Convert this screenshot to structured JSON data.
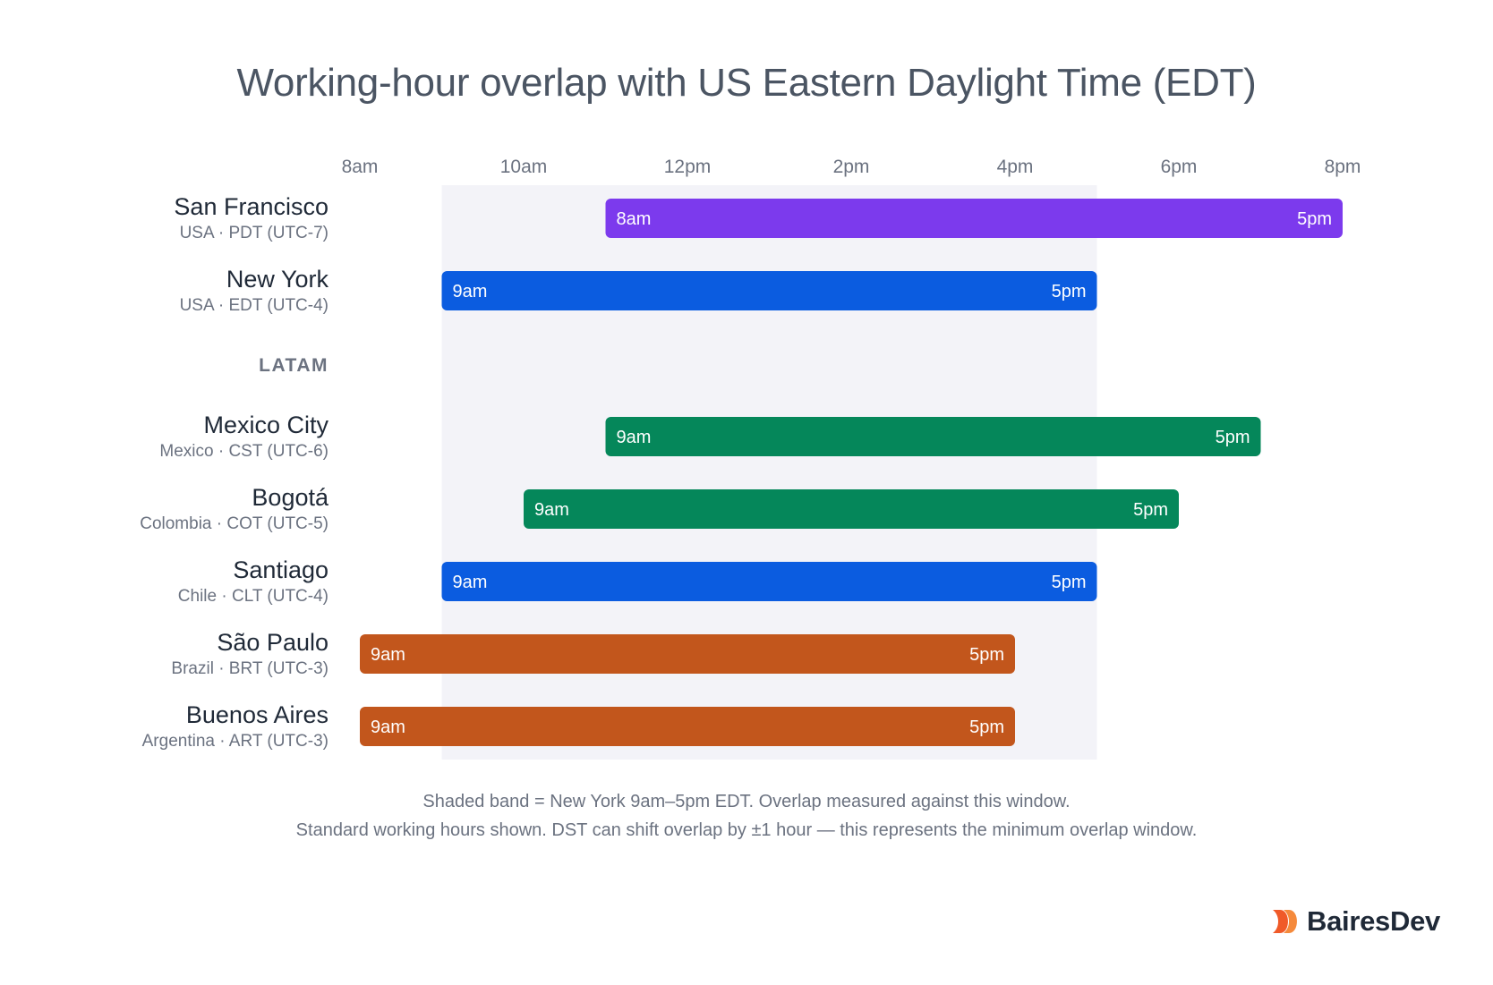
{
  "chart_data": {
    "type": "bar",
    "title": "Working-hour overlap with US Eastern Daylight Time (EDT)",
    "x_ticks": [
      "8am",
      "10am",
      "12pm",
      "2pm",
      "4pm",
      "6pm",
      "8pm"
    ],
    "xlim": [
      8,
      20
    ],
    "shaded_band": {
      "start": 9,
      "end": 17
    },
    "group_label": "LATAM",
    "rows": [
      {
        "city": "San Francisco",
        "zone": "USA · PDT (UTC-7)",
        "start": 11,
        "end": 20,
        "start_label": "8am",
        "end_label": "5pm",
        "color": "#7c3aed"
      },
      {
        "city": "New York",
        "zone": "USA · EDT (UTC-4)",
        "start": 9,
        "end": 17,
        "start_label": "9am",
        "end_label": "5pm",
        "color": "#0b5ce0"
      },
      {
        "city": "Mexico City",
        "zone": "Mexico · CST (UTC-6)",
        "start": 11,
        "end": 19,
        "start_label": "9am",
        "end_label": "5pm",
        "color": "#05875a"
      },
      {
        "city": "Bogotá",
        "zone": "Colombia · COT (UTC-5)",
        "start": 10,
        "end": 18,
        "start_label": "9am",
        "end_label": "5pm",
        "color": "#05875a"
      },
      {
        "city": "Santiago",
        "zone": "Chile · CLT (UTC-4)",
        "start": 9,
        "end": 17,
        "start_label": "9am",
        "end_label": "5pm",
        "color": "#0b5ce0"
      },
      {
        "city": "São Paulo",
        "zone": "Brazil · BRT (UTC-3)",
        "start": 8,
        "end": 16,
        "start_label": "9am",
        "end_label": "5pm",
        "color": "#c2561c"
      },
      {
        "city": "Buenos Aires",
        "zone": "Argentina · ART (UTC-3)",
        "start": 8,
        "end": 16,
        "start_label": "9am",
        "end_label": "5pm",
        "color": "#c2561c"
      }
    ],
    "footnotes": [
      "Shaded band = New York 9am–5pm EDT. Overlap measured against this window.",
      "Standard working hours shown. DST can shift overlap by ±1 hour — this represents the minimum overlap window."
    ],
    "colors": {
      "band": "#f3f3f8",
      "title": "#4b5563",
      "city": "#1f2937",
      "zone": "#6b7280",
      "tick": "#6b7280"
    }
  },
  "brand": {
    "name": "BairesDev",
    "accent": "#f05a28"
  }
}
